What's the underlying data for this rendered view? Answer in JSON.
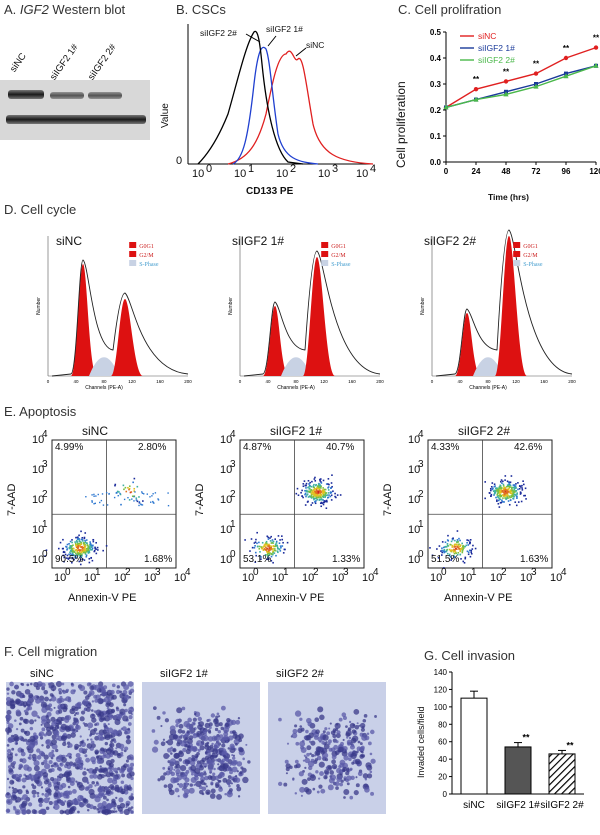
{
  "panelA": {
    "title_prefix": "A. ",
    "title_gene": "IGF2",
    "title_suffix": " Western blot",
    "lanes": [
      "siNC",
      "siIGF2 1#",
      "siIGF2 2#"
    ]
  },
  "panelB": {
    "title": "B. CSCs",
    "ylabel": "Value",
    "xlabel": "CD133 PE",
    "y_zero": "0",
    "labels": {
      "si2": "siIGF2 2#",
      "si1": "siIGF2 1#",
      "nc": "siNC"
    },
    "xticks": [
      "10",
      "0",
      "10",
      "1",
      "10",
      "2",
      "10",
      "3",
      "10",
      "4"
    ],
    "colors": {
      "nc": "#e02020",
      "si1": "#2040d0",
      "si2": "#000000"
    }
  },
  "panelC": {
    "title": "C. Cell prolifration",
    "ylabel": "Cell proliferation",
    "xlabel": "Time (hrs)",
    "sig": "**",
    "legend": [
      "siNC",
      "siIGF2 1#",
      "siIGF2 2#"
    ],
    "colors": [
      "#e02020",
      "#1a3a9a",
      "#4ab84a"
    ],
    "chart_data": {
      "type": "line",
      "x": [
        0,
        24,
        48,
        72,
        96,
        120
      ],
      "series": [
        {
          "name": "siNC",
          "values": [
            0.21,
            0.28,
            0.31,
            0.34,
            0.4,
            0.44
          ]
        },
        {
          "name": "siIGF2 1#",
          "values": [
            0.21,
            0.24,
            0.27,
            0.3,
            0.34,
            0.37
          ]
        },
        {
          "name": "siIGF2 2#",
          "values": [
            0.21,
            0.24,
            0.26,
            0.29,
            0.33,
            0.37
          ]
        }
      ],
      "ylim": [
        0,
        0.5
      ],
      "yticks": [
        "0.0",
        "0.1",
        "0.2",
        "0.3",
        "0.4",
        "0.5"
      ],
      "xticks": [
        "0",
        "24",
        "48",
        "72",
        "96",
        "120"
      ]
    }
  },
  "panelD": {
    "title": "D. Cell cycle",
    "plots": [
      "siNC",
      "siIGF2 1#",
      "siIGF2 2#"
    ],
    "legend": [
      "G0G1",
      "G2/M",
      "S-Phase"
    ],
    "xaxis": "Channels (PE-A)",
    "yaxis": "Number",
    "ticks": [
      "0",
      "40",
      "80",
      "120",
      "160",
      "200"
    ]
  },
  "panelE": {
    "title": "E. Apoptosis",
    "xlabel": "Annexin-V PE",
    "ylabel": "7-AAD",
    "plots": [
      {
        "name": "siNC",
        "ul": "4.99%",
        "ur": "2.80%",
        "ll": "90.5%",
        "lr": "1.68%"
      },
      {
        "name": "siIGF2 1#",
        "ul": "4.87%",
        "ur": "40.7%",
        "ll": "53.1%",
        "lr": "1.33%"
      },
      {
        "name": "siIGF2 2#",
        "ul": "4.33%",
        "ur": "42.6%",
        "ll": "51.5%",
        "lr": "1.63%"
      }
    ],
    "yt": [
      "10",
      "4",
      "10",
      "3",
      "10",
      "2",
      "10",
      "1",
      "10",
      "0"
    ],
    "xt": [
      "10",
      "0",
      "10",
      "1",
      "10",
      "2",
      "10",
      "3",
      "10",
      "4"
    ]
  },
  "panelF": {
    "title": "F. Cell migration",
    "labels": [
      "siNC",
      "siIGF2 1#",
      "siIGF2 2#"
    ]
  },
  "panelG": {
    "title": "G. Cell invasion",
    "ylabel": "Invaded cells/field",
    "sig": "**",
    "chart_data": {
      "type": "bar",
      "categories": [
        "siNC",
        "siIGF2 1#",
        "siIGF2 2#"
      ],
      "values": [
        110,
        54,
        46
      ],
      "errors": [
        8,
        5,
        4
      ],
      "ylim": [
        0,
        140
      ],
      "yticks": [
        "0",
        "20",
        "40",
        "60",
        "80",
        "100",
        "120",
        "140"
      ]
    }
  }
}
